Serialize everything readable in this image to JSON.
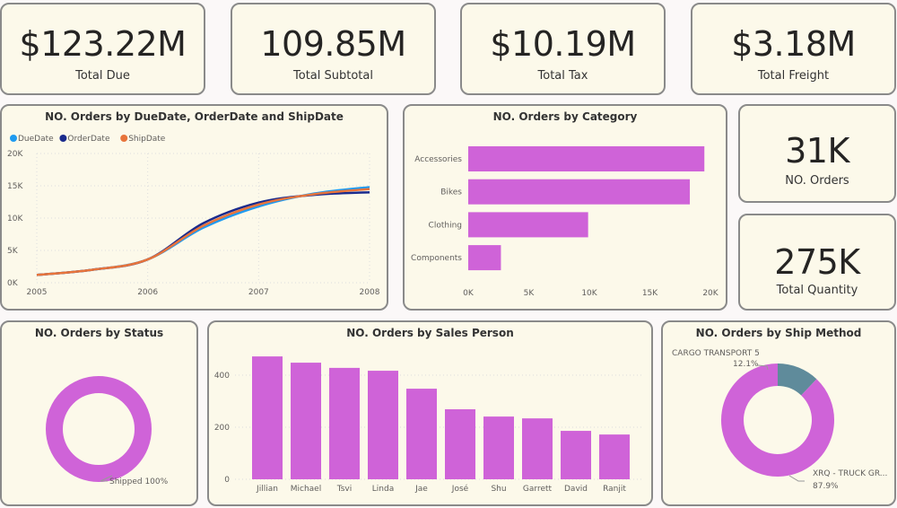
{
  "kpis": [
    {
      "value": "$123.22M",
      "label": "Total Due"
    },
    {
      "value": "109.85M",
      "label": "Total Subtotal"
    },
    {
      "value": "$10.19M",
      "label": "Total Tax"
    },
    {
      "value": "$3.18M",
      "label": "Total Freight"
    }
  ],
  "side_kpis": [
    {
      "value": "31K",
      "label": "NO. Orders"
    },
    {
      "value": "275K",
      "label": "Total Quantity"
    }
  ],
  "colors": {
    "accent": "#cf63d8",
    "due": "#1f9bf0",
    "order": "#1a2a8c",
    "ship": "#e8743b",
    "cargo": "#5f8b9b"
  },
  "chart_data": [
    {
      "type": "line",
      "title": "NO. Orders by DueDate, OrderDate and ShipDate",
      "x": [
        2005,
        2005.5,
        2006,
        2006.5,
        2007,
        2007.5,
        2008
      ],
      "xticks": [
        "2005",
        "2006",
        "2007",
        "2008"
      ],
      "yticks": [
        "0K",
        "5K",
        "10K",
        "15K",
        "20K"
      ],
      "ylim": [
        0,
        20000
      ],
      "legend": "top-left",
      "grid": true,
      "series": [
        {
          "name": "DueDate",
          "color": "#1f9bf0",
          "values": [
            1200,
            2000,
            3600,
            8500,
            11800,
            13800,
            14800
          ]
        },
        {
          "name": "OrderDate",
          "color": "#1a2a8c",
          "values": [
            1200,
            2000,
            3600,
            9200,
            12400,
            13600,
            14000
          ]
        },
        {
          "name": "ShipDate",
          "color": "#e8743b",
          "values": [
            1200,
            2000,
            3600,
            8800,
            12100,
            13700,
            14500
          ]
        }
      ]
    },
    {
      "type": "bar",
      "orientation": "horizontal",
      "title": "NO. Orders by Category",
      "categories": [
        "Accessories",
        "Bikes",
        "Clothing",
        "Components"
      ],
      "values": [
        19500,
        18300,
        9900,
        2700
      ],
      "xticks": [
        "0K",
        "5K",
        "10K",
        "15K",
        "20K"
      ],
      "xlim": [
        0,
        20000
      ]
    },
    {
      "type": "pie",
      "donut": true,
      "title": "NO. Orders by Status",
      "labels": [
        "Shipped 100%"
      ],
      "values": [
        100
      ]
    },
    {
      "type": "bar",
      "title": "NO. Orders by Sales Person",
      "categories": [
        "Jillian",
        "Michael",
        "Tsvi",
        "Linda",
        "Jae",
        "José",
        "Shu",
        "Garrett",
        "David",
        "Ranjit"
      ],
      "values": [
        472,
        448,
        428,
        417,
        348,
        269,
        241,
        234,
        186,
        172
      ],
      "yticks": [
        "0",
        "200",
        "400"
      ],
      "ylim": [
        0,
        500
      ]
    },
    {
      "type": "pie",
      "donut": true,
      "title": "NO. Orders by Ship Method",
      "slices": [
        {
          "name": "CARGO TRANSPORT 5",
          "pct": "12.1%",
          "value": 12.1
        },
        {
          "name": "XRQ - TRUCK GR...",
          "pct": "87.9%",
          "value": 87.9
        }
      ]
    }
  ]
}
